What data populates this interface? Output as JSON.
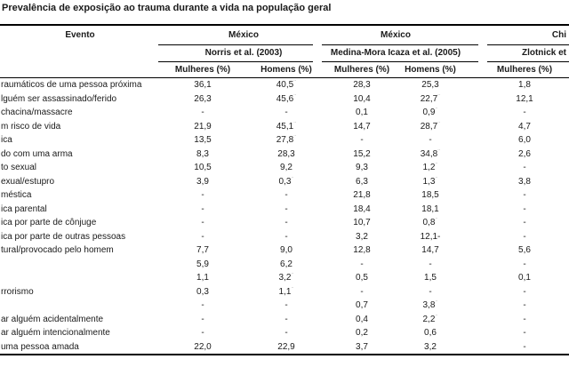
{
  "colors": {
    "background": "#ffffff",
    "text": "#1a1a1a",
    "rule": "#000000"
  },
  "title": "Prevalência de exposição ao trauma durante a vida na população geral",
  "table": {
    "evento_header": "Evento",
    "groups": [
      {
        "country": "México",
        "study": "Norris et al. (2003)",
        "cols": [
          "Mulheres (%)",
          "Homens (%)"
        ]
      },
      {
        "country": "México",
        "study": "Medina-Mora Icaza et al. (2005)",
        "cols": [
          "Mulheres (%)",
          "Homens (%)"
        ]
      },
      {
        "country": "Chi",
        "study": "Zlotnick et",
        "cols": [
          "Mulheres (%)"
        ]
      }
    ],
    "rows": [
      {
        "label": "raumáticos de uma pessoa próxima",
        "values": [
          "36,1",
          "40,5*",
          "28,3",
          "25,3",
          "1,8"
        ]
      },
      {
        "label": "lguém ser assassinado/ferido",
        "values": [
          "26,3",
          "45,6*",
          "10,4",
          "22,7*",
          "12,1"
        ]
      },
      {
        "label": "chacina/massacre",
        "values": [
          "-",
          "-",
          "0,1",
          "0,9*",
          "-"
        ]
      },
      {
        "label": "m risco de vida",
        "values": [
          "21,9",
          "45,1*",
          "14,7",
          "28,7*",
          "4,7"
        ]
      },
      {
        "label": "ica",
        "values": [
          "13,5",
          "27,8*",
          "-",
          "-",
          "6,0"
        ]
      },
      {
        "label": "do com uma arma",
        "values": [
          "8,3",
          "28,3",
          "15,2",
          "34,8*",
          "2,6"
        ]
      },
      {
        "label": "to sexual",
        "values": [
          "10,5",
          "9,2",
          "9,3",
          "1,2*",
          "-"
        ]
      },
      {
        "label": "exual/estupro",
        "values": [
          "3,9",
          "0,3*",
          "6,3",
          "1,3*",
          "3,8"
        ]
      },
      {
        "label": "méstica",
        "values": [
          "-",
          "-",
          "21,8",
          "18,5",
          "-"
        ]
      },
      {
        "label": "ica parental",
        "values": [
          "-",
          "-",
          "18,4",
          "18,1",
          "-"
        ]
      },
      {
        "label": "ica por parte de cônjuge",
        "values": [
          "-",
          "-",
          "10,7",
          "0,8*",
          "-"
        ]
      },
      {
        "label": "ica por parte de outras pessoas",
        "values": [
          "-",
          "-",
          "3,2",
          "12,1-",
          "-"
        ]
      },
      {
        "label": "tural/provocado pelo homem",
        "values": [
          "7,7",
          "9,0",
          "12,8",
          "14,7",
          "5,6"
        ]
      },
      {
        "label": "",
        "values": [
          "5,9",
          "6,2",
          "-",
          "-",
          "-"
        ]
      },
      {
        "label": "",
        "values": [
          "1,1",
          "3,2*",
          "0,5",
          "1,5",
          "0,1"
        ]
      },
      {
        "label": "rrorismo",
        "values": [
          "0,3",
          "1,1*",
          "-",
          "-",
          "-"
        ]
      },
      {
        "label": "",
        "values": [
          "-",
          "-",
          "0,7",
          "3,8*",
          "-"
        ]
      },
      {
        "label": "ar alguém acidentalmente",
        "values": [
          "-",
          "-",
          "0,4",
          "2,2*",
          "-"
        ]
      },
      {
        "label": "ar alguém intencionalmente",
        "values": [
          "-",
          "-",
          "0,2",
          "0,6",
          "-"
        ]
      },
      {
        "label": "uma pessoa amada",
        "values": [
          "22,0",
          "22,9",
          "3,7",
          "3,2",
          "-"
        ]
      }
    ]
  }
}
